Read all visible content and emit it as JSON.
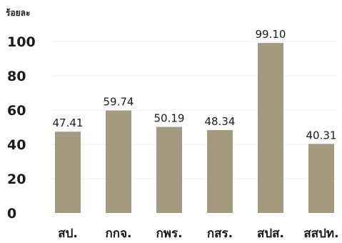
{
  "chart_data": {
    "type": "bar",
    "ylabel": "ร้อยละ",
    "categories": [
      "สป.",
      "กกจ.",
      "กพร.",
      "กสร.",
      "สปส.",
      "สสปท."
    ],
    "values": [
      47.41,
      59.74,
      50.19,
      48.34,
      99.1,
      40.31
    ],
    "value_labels": [
      "47.41",
      "59.74",
      "50.19",
      "48.34",
      "99.10",
      "40.31"
    ],
    "yticks": [
      "0",
      "20",
      "40",
      "60",
      "80",
      "100"
    ],
    "ytick_values": [
      0,
      20,
      40,
      60,
      80,
      100
    ],
    "ylim": [
      0,
      100
    ],
    "grid": true,
    "bar_color": "#a39a80"
  }
}
